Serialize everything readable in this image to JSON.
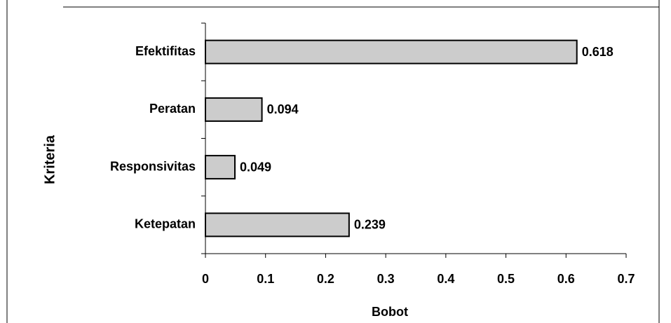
{
  "chart_data": {
    "type": "hbar",
    "categories": [
      "Efektifitas",
      "Peratan",
      "Responsivitas",
      "Ketepatan"
    ],
    "values": [
      0.618,
      0.094,
      0.049,
      0.239
    ],
    "color": "#cccccc",
    "x_label": "Bobot",
    "y_label": "Kriteria",
    "xlim": [
      0,
      0.7
    ],
    "xticks": [
      0,
      0.1,
      0.2,
      0.3,
      0.4,
      0.5,
      0.6,
      0.7
    ]
  }
}
